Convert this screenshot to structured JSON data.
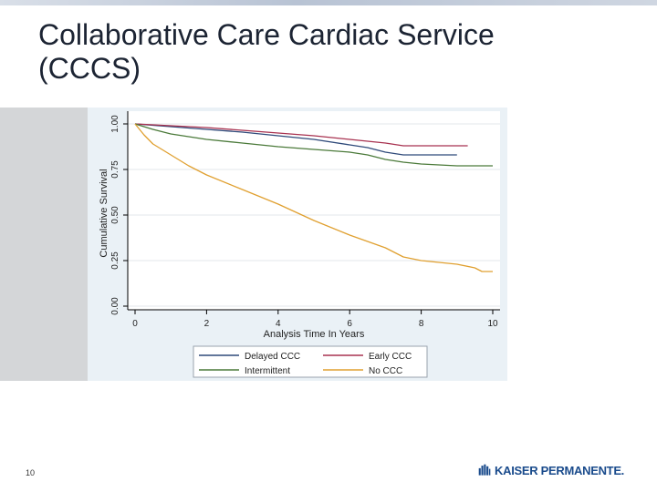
{
  "slide": {
    "title_line1": "Collaborative Care Cardiac Service",
    "title_line2": "(CCCS)",
    "page_number": "10",
    "logo_text": "KAISER PERMANENTE.",
    "logo_icon": "kaiser-permanente-logo-icon"
  },
  "chart_data": {
    "type": "line",
    "title": "",
    "xlabel": "Analysis Time In Years",
    "ylabel": "Cumulative Survival",
    "xlim": [
      0,
      10
    ],
    "ylim": [
      0,
      1
    ],
    "x_ticks": [
      0,
      2,
      4,
      6,
      8,
      10
    ],
    "x_tick_labels": [
      "0",
      "2",
      "4",
      "6",
      "8",
      "10"
    ],
    "y_ticks": [
      0,
      0.25,
      0.5,
      0.75,
      1
    ],
    "y_tick_labels": [
      "0.00",
      "0.25",
      "0.50",
      "0.75",
      "1.00"
    ],
    "grid": true,
    "legend_position": "bottom",
    "series": [
      {
        "name": "Delayed CCC",
        "color": "#2f4a7a",
        "points": [
          [
            0,
            1.0
          ],
          [
            1,
            0.985
          ],
          [
            2,
            0.97
          ],
          [
            3,
            0.955
          ],
          [
            4,
            0.935
          ],
          [
            5,
            0.915
          ],
          [
            6,
            0.885
          ],
          [
            6.5,
            0.87
          ],
          [
            7,
            0.845
          ],
          [
            7.5,
            0.83
          ],
          [
            9,
            0.83
          ]
        ]
      },
      {
        "name": "Early CCC",
        "color": "#a83250",
        "points": [
          [
            0,
            1.0
          ],
          [
            1,
            0.99
          ],
          [
            2,
            0.98
          ],
          [
            3,
            0.965
          ],
          [
            4,
            0.95
          ],
          [
            5,
            0.935
          ],
          [
            6,
            0.915
          ],
          [
            7,
            0.895
          ],
          [
            7.5,
            0.88
          ],
          [
            9.3,
            0.88
          ]
        ]
      },
      {
        "name": "Intermittent",
        "color": "#4b7a3a",
        "points": [
          [
            0,
            1.0
          ],
          [
            0.5,
            0.97
          ],
          [
            1,
            0.945
          ],
          [
            2,
            0.915
          ],
          [
            3,
            0.895
          ],
          [
            4,
            0.875
          ],
          [
            5,
            0.86
          ],
          [
            6,
            0.845
          ],
          [
            6.5,
            0.83
          ],
          [
            7,
            0.805
          ],
          [
            7.5,
            0.79
          ],
          [
            8,
            0.78
          ],
          [
            9,
            0.77
          ],
          [
            10,
            0.77
          ]
        ]
      },
      {
        "name": "No CCC",
        "color": "#e0a030",
        "points": [
          [
            0,
            1.0
          ],
          [
            0.25,
            0.94
          ],
          [
            0.5,
            0.89
          ],
          [
            1,
            0.83
          ],
          [
            1.5,
            0.77
          ],
          [
            2,
            0.72
          ],
          [
            3,
            0.64
          ],
          [
            4,
            0.56
          ],
          [
            5,
            0.47
          ],
          [
            6,
            0.39
          ],
          [
            7,
            0.32
          ],
          [
            7.5,
            0.27
          ],
          [
            8,
            0.25
          ],
          [
            8.5,
            0.24
          ],
          [
            9,
            0.23
          ],
          [
            9.5,
            0.21
          ],
          [
            9.7,
            0.19
          ],
          [
            10,
            0.19
          ]
        ]
      }
    ]
  }
}
